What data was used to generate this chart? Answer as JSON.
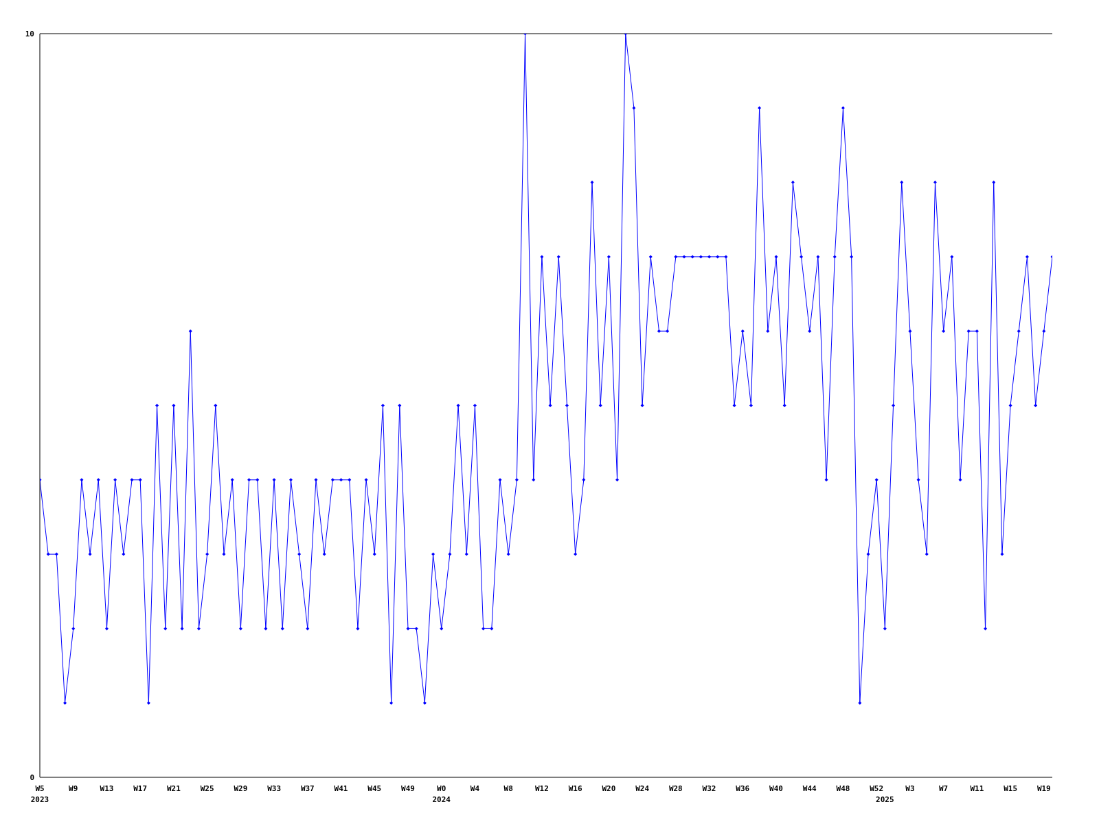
{
  "chart_data": {
    "type": "line",
    "categories": [
      "W5\n2023",
      null,
      null,
      null,
      "W9",
      null,
      null,
      null,
      "W13",
      null,
      null,
      null,
      "W17",
      null,
      null,
      null,
      "W21",
      null,
      null,
      null,
      "W25",
      null,
      null,
      null,
      "W29",
      null,
      null,
      null,
      "W33",
      null,
      null,
      null,
      "W37",
      null,
      null,
      null,
      "W41",
      null,
      null,
      null,
      "W45",
      null,
      null,
      null,
      "W49",
      null,
      null,
      null,
      "W0\n2024",
      null,
      null,
      null,
      "W4",
      null,
      null,
      null,
      "W8",
      null,
      null,
      null,
      "W12",
      null,
      null,
      null,
      "W16",
      null,
      null,
      null,
      "W20",
      null,
      null,
      null,
      "W24",
      null,
      null,
      null,
      "W28",
      null,
      null,
      null,
      "W32",
      null,
      null,
      null,
      "W36",
      null,
      null,
      null,
      "W40",
      null,
      null,
      null,
      "W44",
      null,
      null,
      null,
      "W48",
      null,
      null,
      null,
      "W52",
      "\n2025",
      null,
      null,
      "W3",
      null,
      null,
      null,
      "W7",
      null,
      null,
      null,
      "W11",
      null,
      null,
      null,
      "W15",
      null,
      null,
      null,
      "W19",
      null
    ],
    "series": [
      {
        "color": "#0000ff",
        "values": [
          4,
          3,
          3,
          1,
          2,
          4,
          3,
          4,
          2,
          4,
          3,
          4,
          4,
          1,
          5,
          2,
          5,
          2,
          6,
          2,
          3,
          5,
          3,
          4,
          2,
          4,
          4,
          2,
          4,
          2,
          4,
          3,
          2,
          4,
          3,
          4,
          4,
          4,
          2,
          4,
          3,
          5,
          1,
          5,
          2,
          2,
          1,
          3,
          2,
          3,
          5,
          3,
          5,
          2,
          2,
          4,
          3,
          4,
          10,
          4,
          7,
          5,
          7,
          5,
          3,
          4,
          8,
          5,
          7,
          4,
          10,
          9,
          5,
          7,
          6,
          6,
          7,
          7,
          7,
          7,
          7,
          7,
          7,
          5,
          6,
          5,
          9,
          6,
          7,
          5,
          8,
          7,
          6,
          7,
          4,
          7,
          9,
          7,
          1,
          3,
          4,
          2,
          5,
          8,
          6,
          4,
          3,
          8,
          6,
          7,
          4,
          6,
          6,
          2,
          8,
          3,
          5,
          6,
          7,
          5,
          6,
          7
        ]
      }
    ],
    "ylim": [
      0,
      10
    ],
    "yticks": [
      0,
      10
    ],
    "grid": false,
    "marker": "diamond",
    "line_style": "solid",
    "legend": false
  }
}
